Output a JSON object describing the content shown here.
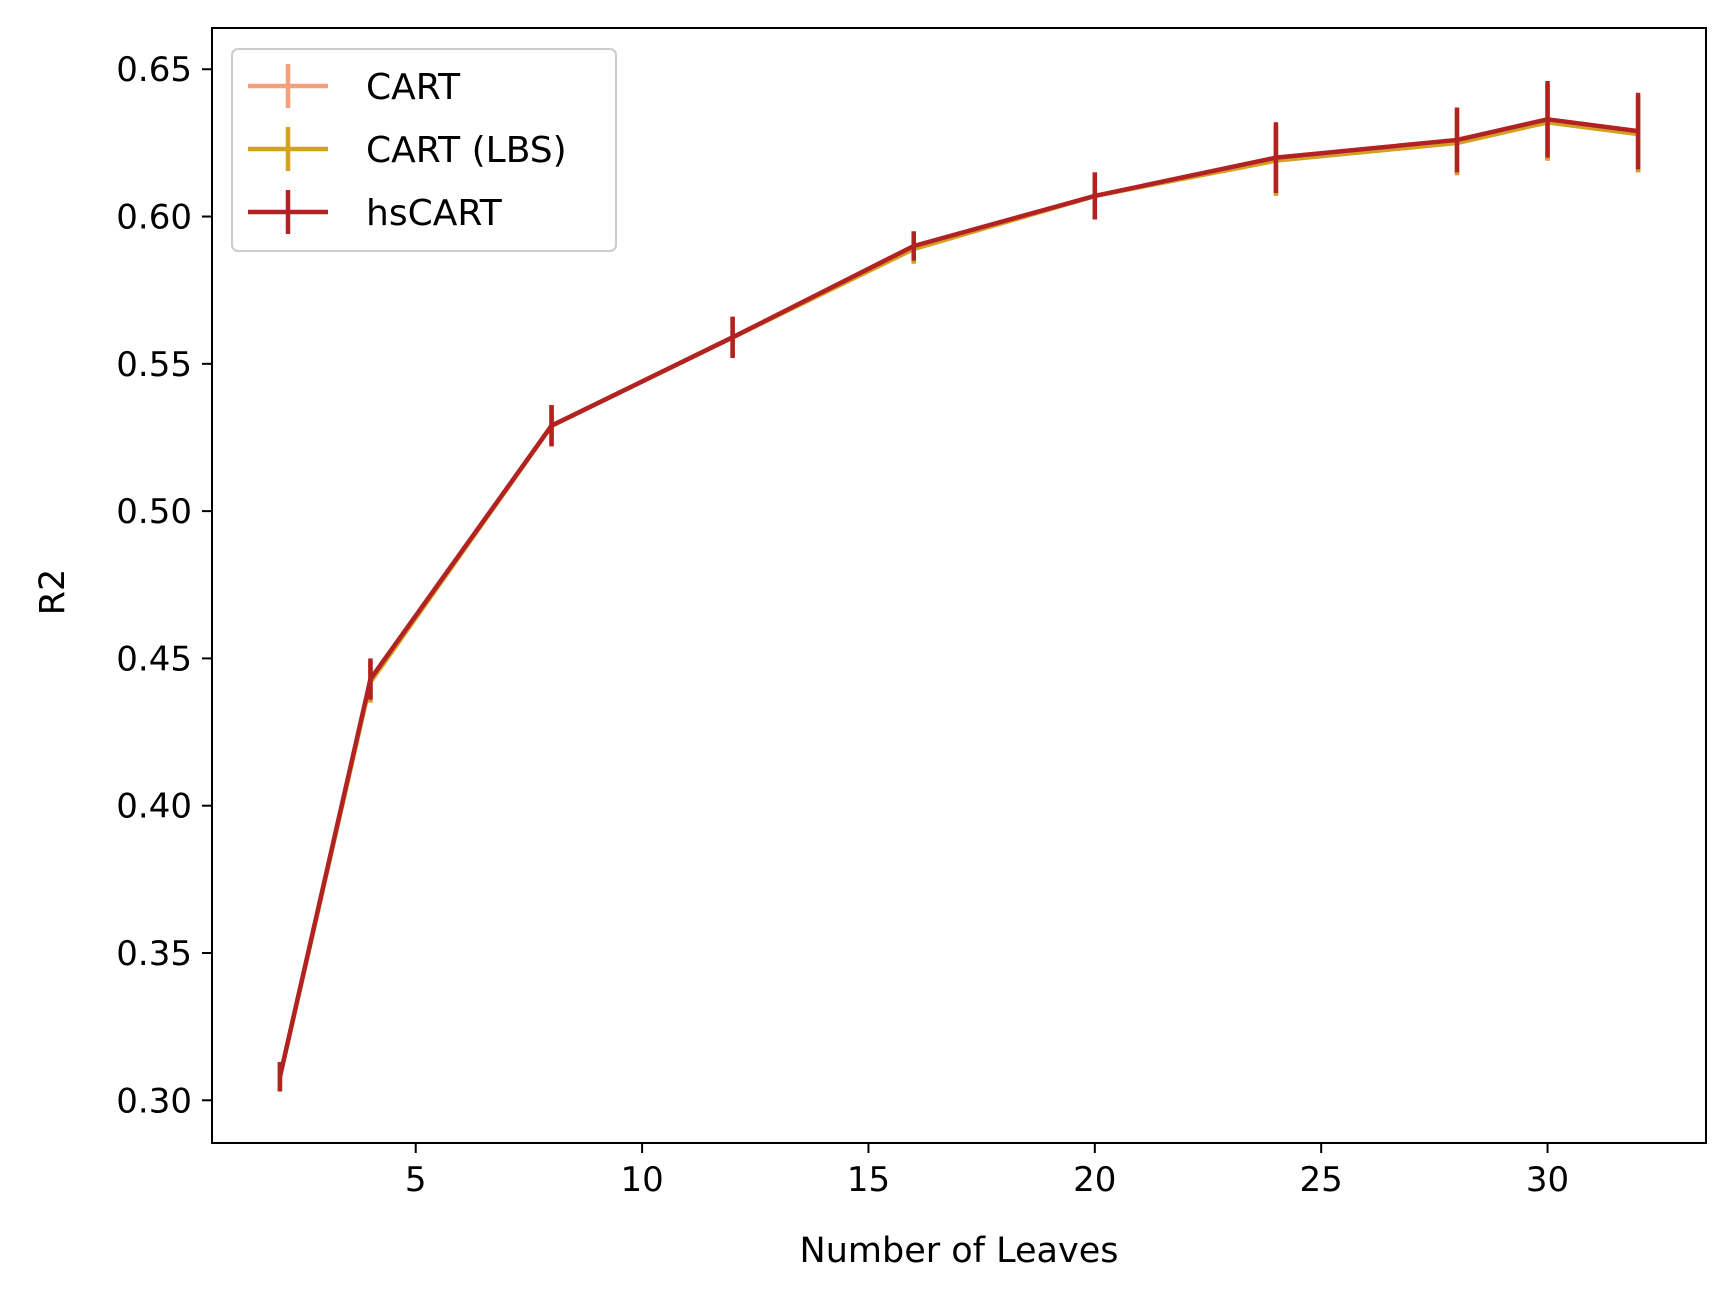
{
  "chart_data": {
    "type": "line",
    "title": "",
    "xlabel": "Number of Leaves",
    "ylabel": "R2",
    "xlim": [
      0.5,
      33.5
    ],
    "ylim": [
      0.2855,
      0.664
    ],
    "x_ticks": [
      5,
      10,
      15,
      20,
      25,
      30
    ],
    "y_ticks": [
      0.3,
      0.35,
      0.4,
      0.45,
      0.5,
      0.55,
      0.6,
      0.65
    ],
    "x_tick_labels": [
      "5",
      "10",
      "15",
      "20",
      "25",
      "30"
    ],
    "y_tick_labels": [
      "0.30",
      "0.35",
      "0.40",
      "0.45",
      "0.50",
      "0.55",
      "0.60",
      "0.65"
    ],
    "grid": false,
    "legend_position": "top-left",
    "x": [
      2,
      4,
      8,
      12,
      16,
      20,
      24,
      28,
      30,
      32
    ],
    "series": [
      {
        "name": "CART",
        "color": "#f4a07c",
        "values": [
          0.308,
          0.442,
          0.529,
          0.559,
          0.589,
          0.607,
          0.619,
          0.625,
          0.632,
          0.628
        ],
        "errors": [
          0.005,
          0.007,
          0.007,
          0.007,
          0.005,
          0.008,
          0.012,
          0.011,
          0.013,
          0.013
        ]
      },
      {
        "name": "CART (LBS)",
        "color": "#d4a020",
        "values": [
          0.308,
          0.442,
          0.529,
          0.559,
          0.589,
          0.607,
          0.619,
          0.625,
          0.632,
          0.628
        ],
        "errors": [
          0.005,
          0.007,
          0.007,
          0.007,
          0.005,
          0.008,
          0.012,
          0.011,
          0.013,
          0.013
        ]
      },
      {
        "name": "hsCART",
        "color": "#b22222",
        "values": [
          0.308,
          0.443,
          0.529,
          0.559,
          0.59,
          0.607,
          0.62,
          0.626,
          0.633,
          0.629
        ],
        "errors": [
          0.005,
          0.007,
          0.007,
          0.007,
          0.005,
          0.008,
          0.012,
          0.011,
          0.013,
          0.013
        ]
      }
    ]
  }
}
